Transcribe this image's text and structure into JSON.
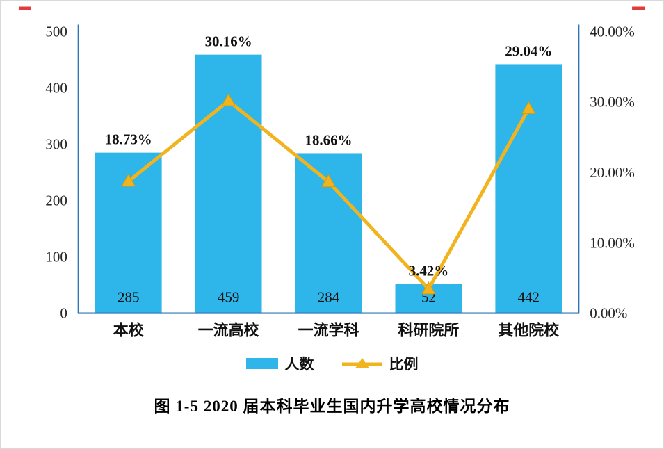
{
  "chart_data": {
    "type": "bar+line",
    "categories": [
      "本校",
      "一流高校",
      "一流学科",
      "科研院所",
      "其他院校"
    ],
    "series": [
      {
        "name": "人数",
        "chart": "bar",
        "color": "#2eb5ea",
        "values": [
          285,
          459,
          284,
          52,
          442
        ],
        "labels": [
          "285",
          "459",
          "284",
          "52",
          "442"
        ]
      },
      {
        "name": "比例",
        "chart": "line",
        "color": "#f1b41f",
        "marker": "triangle",
        "values": [
          18.73,
          30.16,
          18.66,
          3.42,
          29.04
        ],
        "labels": [
          "18.73%",
          "30.16%",
          "18.66%",
          "3.42%",
          "29.04%"
        ]
      }
    ],
    "left_axis": {
      "min": 0,
      "max": 500,
      "step": 100,
      "ticks": [
        "0",
        "100",
        "200",
        "300",
        "400",
        "500"
      ]
    },
    "right_axis": {
      "min": 0,
      "max": 40,
      "step": 10,
      "ticks": [
        "0.00%",
        "10.00%",
        "20.00%",
        "30.00%",
        "40.00%"
      ]
    },
    "axis_color": "#2e75b6",
    "mark_color": "#e23b3b",
    "grid": "off",
    "legend_position": "bottom",
    "legend": [
      "人数",
      "比例"
    ],
    "caption": "图 1-5  2020 届本科毕业生国内升学高校情况分布"
  }
}
